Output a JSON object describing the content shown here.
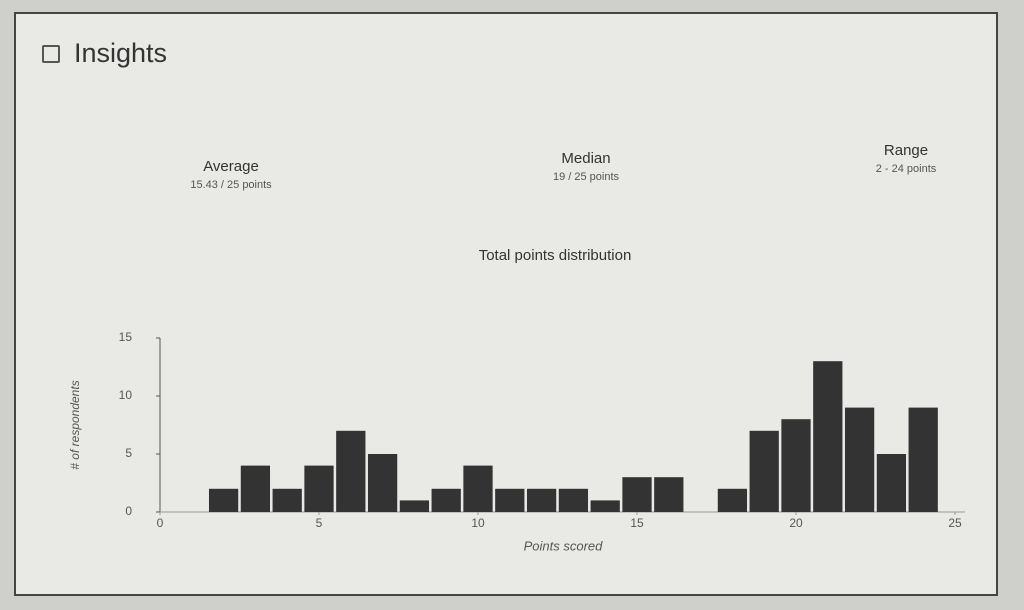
{
  "header": {
    "title": "Insights"
  },
  "stats": [
    {
      "label": "Average",
      "value": "15.43 / 25 points"
    },
    {
      "label": "Median",
      "value": "19 / 25 points"
    },
    {
      "label": "Range",
      "value": "2 - 24 points"
    }
  ],
  "chart_data": {
    "type": "bar",
    "title": "Total points distribution",
    "x_label": "Points scored",
    "y_label": "# of respondents",
    "x": [
      2,
      3,
      4,
      5,
      6,
      7,
      8,
      9,
      10,
      11,
      12,
      13,
      14,
      15,
      16,
      17,
      18,
      19,
      20,
      21,
      22,
      23,
      24
    ],
    "values": [
      2,
      4,
      2,
      4,
      7,
      5,
      1,
      2,
      4,
      2,
      2,
      2,
      1,
      3,
      3,
      0,
      2,
      7,
      8,
      13,
      9,
      5,
      9
    ],
    "color": "#333333",
    "xlim": [
      0,
      25
    ],
    "xticks": [
      0,
      5,
      10,
      15,
      20,
      25
    ],
    "ylim": [
      0,
      15
    ],
    "yticks": [
      0,
      5,
      10,
      15
    ]
  }
}
